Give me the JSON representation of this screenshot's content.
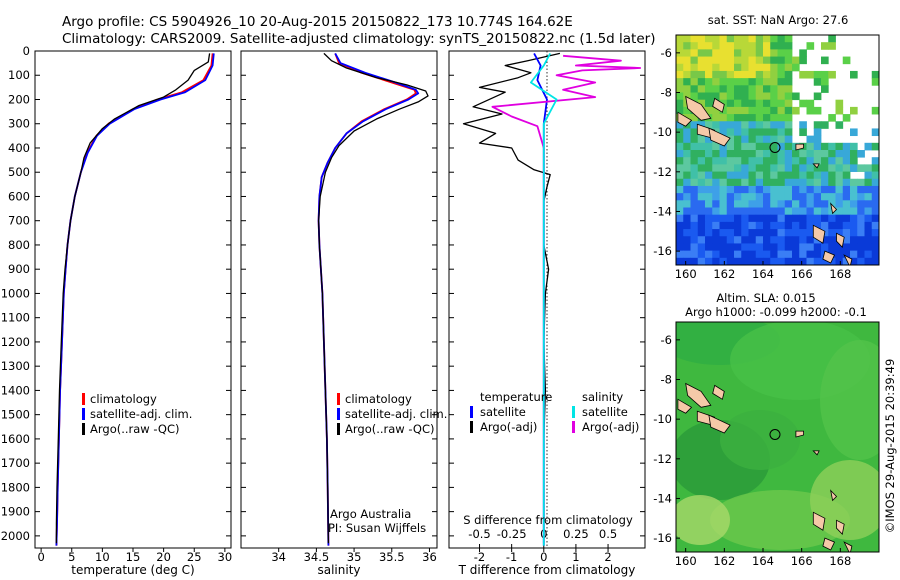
{
  "header": {
    "line1": "Argo profile: CS 5904926_10 20-Aug-2015 20150822_173 10.774S 164.62E",
    "line2": "Climatology: CARS2009. Satellite-adjusted climatology: synTS_20150822.nc (1.5d later)"
  },
  "side_stamp": "©IMOS 29-Aug-2015 20:39:49",
  "credit": {
    "line1": "Argo Australia",
    "line2": "PI: Susan Wijffels"
  },
  "colors": {
    "climatology": "#ff0000",
    "satellite": "#0000ff",
    "argo": "#000000",
    "sat_salinity": "#00e5e5",
    "argo_salinity": "#e000e0"
  },
  "chart_data": [
    {
      "type": "line",
      "name": "temperature",
      "xlabel": "temperature (deg C)",
      "ylim": [
        2050,
        0
      ],
      "xlim": [
        -1,
        31
      ],
      "xticks": [
        0,
        5,
        10,
        15,
        20,
        25,
        30
      ],
      "yticks": [
        0,
        100,
        200,
        300,
        400,
        500,
        600,
        700,
        800,
        900,
        1000,
        1100,
        1200,
        1300,
        1400,
        1500,
        1600,
        1700,
        1800,
        1900,
        2000
      ],
      "legend": [
        "climatology",
        "satellite-adj. clim.",
        "Argo(..raw -QC)"
      ],
      "series": [
        {
          "key": "climatology",
          "color": "#ff0000",
          "points": [
            [
              28,
              10
            ],
            [
              27.8,
              60
            ],
            [
              26.5,
              120
            ],
            [
              23,
              170
            ],
            [
              19,
              200
            ],
            [
              15,
              240
            ],
            [
              11,
              300
            ],
            [
              9,
              350
            ],
            [
              7.5,
              420
            ],
            [
              6.5,
              500
            ],
            [
              5.5,
              600
            ],
            [
              4.8,
              700
            ],
            [
              4.3,
              800
            ],
            [
              4,
              900
            ],
            [
              3.7,
              1000
            ],
            [
              3.4,
              1200
            ],
            [
              3.1,
              1400
            ],
            [
              2.9,
              1600
            ],
            [
              2.7,
              1800
            ],
            [
              2.6,
              1950
            ],
            [
              2.5,
              2040
            ]
          ]
        },
        {
          "key": "satellite",
          "color": "#0000ff",
          "points": [
            [
              28.2,
              10
            ],
            [
              28,
              60
            ],
            [
              26.8,
              120
            ],
            [
              23.5,
              170
            ],
            [
              19.5,
              200
            ],
            [
              15.2,
              240
            ],
            [
              11.2,
              300
            ],
            [
              9.1,
              350
            ],
            [
              7.6,
              420
            ],
            [
              6.5,
              500
            ],
            [
              5.5,
              600
            ],
            [
              4.8,
              700
            ],
            [
              4.3,
              800
            ],
            [
              4,
              900
            ],
            [
              3.7,
              1000
            ],
            [
              3.4,
              1200
            ],
            [
              3.1,
              1400
            ],
            [
              2.9,
              1600
            ],
            [
              2.7,
              1800
            ],
            [
              2.6,
              1950
            ],
            [
              2.5,
              2040
            ]
          ]
        },
        {
          "key": "argo",
          "color": "#000000",
          "points": [
            [
              27.5,
              10
            ],
            [
              27.3,
              45
            ],
            [
              25,
              80
            ],
            [
              24,
              120
            ],
            [
              22,
              160
            ],
            [
              20,
              190
            ],
            [
              16,
              225
            ],
            [
              12,
              280
            ],
            [
              10,
              320
            ],
            [
              8,
              380
            ],
            [
              7,
              440
            ],
            [
              6.5,
              500
            ],
            [
              5.5,
              600
            ],
            [
              4.8,
              700
            ],
            [
              4.3,
              800
            ],
            [
              3.9,
              900
            ],
            [
              3.6,
              1000
            ],
            [
              3.3,
              1200
            ],
            [
              3,
              1400
            ],
            [
              2.8,
              1600
            ],
            [
              2.6,
              1800
            ],
            [
              2.5,
              1950
            ],
            [
              2.5,
              2030
            ]
          ]
        }
      ]
    },
    {
      "type": "line",
      "name": "salinity",
      "xlabel": "salinity",
      "ylim": [
        2050,
        0
      ],
      "xlim": [
        33.5,
        36.1
      ],
      "xticks": [
        34,
        34.5,
        35,
        35.5,
        36
      ],
      "legend": [
        "climatology",
        "satellite-adj. clim.",
        "Argo(..raw -QC)"
      ],
      "series": [
        {
          "key": "climatology",
          "color": "#ff0000",
          "points": [
            [
              34.75,
              10
            ],
            [
              34.8,
              50
            ],
            [
              35.1,
              90
            ],
            [
              35.5,
              130
            ],
            [
              35.8,
              160
            ],
            [
              35.82,
              175
            ],
            [
              35.7,
              200
            ],
            [
              35.4,
              240
            ],
            [
              35.1,
              290
            ],
            [
              34.9,
              340
            ],
            [
              34.75,
              400
            ],
            [
              34.65,
              460
            ],
            [
              34.57,
              520
            ],
            [
              34.54,
              600
            ],
            [
              34.53,
              700
            ],
            [
              34.54,
              800
            ],
            [
              34.56,
              900
            ],
            [
              34.58,
              1000
            ],
            [
              34.6,
              1200
            ],
            [
              34.62,
              1400
            ],
            [
              34.64,
              1600
            ],
            [
              34.65,
              1800
            ],
            [
              34.66,
              2040
            ]
          ]
        },
        {
          "key": "satellite",
          "color": "#0000ff",
          "points": [
            [
              34.75,
              10
            ],
            [
              34.82,
              50
            ],
            [
              35.15,
              90
            ],
            [
              35.55,
              130
            ],
            [
              35.82,
              160
            ],
            [
              35.85,
              175
            ],
            [
              35.72,
              200
            ],
            [
              35.42,
              240
            ],
            [
              35.12,
              290
            ],
            [
              34.9,
              340
            ],
            [
              34.75,
              400
            ],
            [
              34.65,
              460
            ],
            [
              34.57,
              520
            ],
            [
              34.54,
              600
            ],
            [
              34.53,
              700
            ],
            [
              34.54,
              800
            ],
            [
              34.56,
              900
            ],
            [
              34.58,
              1000
            ],
            [
              34.6,
              1200
            ],
            [
              34.62,
              1400
            ],
            [
              34.64,
              1600
            ],
            [
              34.65,
              1800
            ],
            [
              34.66,
              2040
            ]
          ]
        },
        {
          "key": "argo",
          "color": "#000000",
          "points": [
            [
              34.6,
              10
            ],
            [
              34.7,
              40
            ],
            [
              34.9,
              70
            ],
            [
              35.3,
              110
            ],
            [
              35.7,
              140
            ],
            [
              35.95,
              165
            ],
            [
              35.98,
              185
            ],
            [
              35.85,
              210
            ],
            [
              35.6,
              240
            ],
            [
              35.3,
              280
            ],
            [
              35,
              330
            ],
            [
              34.8,
              390
            ],
            [
              34.7,
              440
            ],
            [
              34.62,
              500
            ],
            [
              34.55,
              600
            ],
            [
              34.53,
              700
            ],
            [
              34.54,
              800
            ],
            [
              34.56,
              900
            ],
            [
              34.58,
              1000
            ],
            [
              34.6,
              1200
            ],
            [
              34.62,
              1400
            ],
            [
              34.64,
              1600
            ],
            [
              34.65,
              1800
            ],
            [
              34.66,
              2030
            ]
          ]
        }
      ]
    },
    {
      "type": "line",
      "name": "difference",
      "xlabel": "T difference from climatology",
      "xlabel2": "S difference from climatology",
      "ylim": [
        2050,
        0
      ],
      "xlim": [
        -2.95,
        3.15
      ],
      "xticks": [
        -2,
        -1,
        0,
        1,
        2
      ],
      "xticks2": [
        -0.5,
        -0.25,
        0,
        0.25,
        0.5
      ],
      "xticks2_labels": [
        "-0.5",
        "-0.25",
        "0",
        "0.25",
        "0.5"
      ],
      "legend_left_title": "temperature",
      "legend_right_title": "salinity",
      "legend_left": [
        "satellite",
        "Argo(-adj)"
      ],
      "legend_right": [
        "satellite",
        "Argo(-adj)"
      ],
      "series": [
        {
          "key": "t_argo",
          "color": "#000000",
          "points": [
            [
              0.5,
              10
            ],
            [
              -0.5,
              40
            ],
            [
              -1.2,
              60
            ],
            [
              -0.4,
              90
            ],
            [
              -0.8,
              110
            ],
            [
              -2,
              150
            ],
            [
              -1.2,
              170
            ],
            [
              -2.2,
              230
            ],
            [
              -1.3,
              260
            ],
            [
              -2.5,
              300
            ],
            [
              -1.5,
              340
            ],
            [
              -2,
              380
            ],
            [
              -1,
              400
            ],
            [
              -0.8,
              450
            ],
            [
              -0.3,
              490
            ],
            [
              0.2,
              510
            ],
            [
              0.1,
              560
            ],
            [
              0,
              620
            ],
            [
              0,
              800
            ],
            [
              0.15,
              900
            ],
            [
              0.05,
              1000
            ],
            [
              0,
              1200
            ],
            [
              0.05,
              1400
            ],
            [
              0,
              1600
            ],
            [
              0,
              2030
            ]
          ]
        },
        {
          "key": "t_sat",
          "color": "#0000ff",
          "points": [
            [
              -0.3,
              10
            ],
            [
              -0.1,
              60
            ],
            [
              -0.2,
              120
            ],
            [
              0.1,
              200
            ],
            [
              0,
              300
            ],
            [
              0,
              500
            ],
            [
              0,
              2040
            ]
          ]
        },
        {
          "key": "s_argo",
          "color": "#e000e0",
          "points": [
            [
              0.3,
              20
            ],
            [
              1.2,
              40
            ],
            [
              0.5,
              60
            ],
            [
              1.5,
              70
            ],
            [
              0.6,
              80
            ],
            [
              0.2,
              100
            ],
            [
              0.8,
              130
            ],
            [
              0.3,
              160
            ],
            [
              0.8,
              190
            ],
            [
              -0.8,
              230
            ],
            [
              -0.5,
              270
            ],
            [
              -0.1,
              310
            ],
            [
              0,
              400
            ],
            [
              0,
              2030
            ]
          ]
        },
        {
          "key": "s_sat",
          "color": "#00e5e5",
          "points": [
            [
              0.1,
              10
            ],
            [
              0,
              60
            ],
            [
              -0.2,
              130
            ],
            [
              0.2,
              200
            ],
            [
              0,
              300
            ],
            [
              0,
              2040
            ]
          ]
        }
      ]
    },
    {
      "type": "heatmap",
      "name": "sst-map",
      "title": "sat. SST: NaN Argo: 27.6",
      "xticks": [
        160,
        162,
        164,
        166,
        168
      ],
      "yticks": [
        -6,
        -8,
        -10,
        -12,
        -14,
        -16
      ],
      "xlim": [
        159.5,
        170
      ],
      "ylim": [
        -16.7,
        -5.1
      ],
      "argo_position": [
        164.62,
        -10.774
      ]
    },
    {
      "type": "heatmap",
      "name": "sla-map",
      "title": "Altim. SLA: 0.015",
      "subtitle": "Argo h1000: -0.099 h2000: -0.1",
      "xticks": [
        160,
        162,
        164,
        166,
        168
      ],
      "yticks": [
        -6,
        -8,
        -10,
        -12,
        -14,
        -16
      ],
      "xlim": [
        159.5,
        170
      ],
      "ylim": [
        -16.7,
        -5.1
      ],
      "argo_position": [
        164.62,
        -10.774
      ]
    }
  ]
}
